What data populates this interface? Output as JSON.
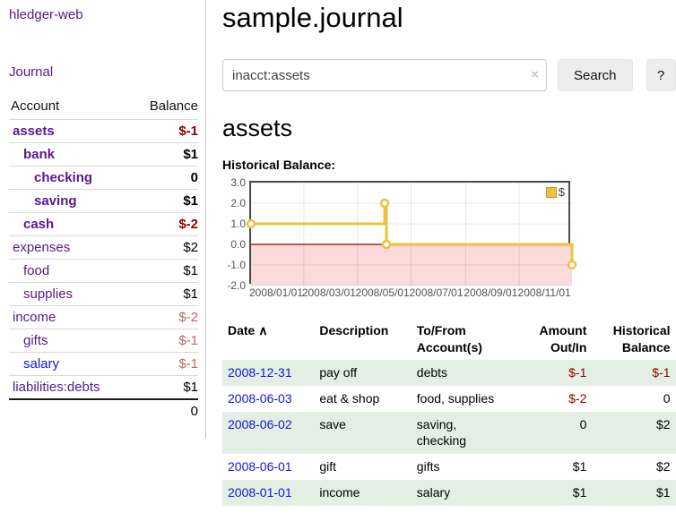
{
  "colors": {
    "brand_purple": "#551a8b",
    "link_blue": "#1414dd",
    "neg_strong": "#8b0000",
    "neg_muted": "#b56a6a",
    "row_green": "#e3efe3",
    "chart_line": "#edc240",
    "chart_neg_fill": "#fbdada",
    "chart_zero": "#8b0000",
    "axis_text": "#545454",
    "button_bg": "#ededed",
    "divider": "#cccccc"
  },
  "app": {
    "title": "hledger-web",
    "nav_journal": "Journal"
  },
  "sidebar": {
    "accounts_header": {
      "account": "Account",
      "balance": "Balance"
    },
    "accounts": [
      {
        "name": "assets",
        "indent": 1,
        "balance": "$-1",
        "bold": true,
        "neg": "strong"
      },
      {
        "name": "bank",
        "indent": 2,
        "balance": "$1",
        "bold": true
      },
      {
        "name": "checking",
        "indent": 3,
        "balance": "0",
        "bold": true
      },
      {
        "name": "saving",
        "indent": 3,
        "balance": "$1",
        "bold": true
      },
      {
        "name": "cash",
        "indent": 2,
        "balance": "$-2",
        "bold": true,
        "neg": "strong"
      },
      {
        "name": "expenses",
        "indent": 1,
        "balance": "$2"
      },
      {
        "name": "food",
        "indent": 2,
        "balance": "$1"
      },
      {
        "name": "supplies",
        "indent": 2,
        "balance": "$1"
      },
      {
        "name": "income",
        "indent": 1,
        "balance": "$-2",
        "neg": "muted"
      },
      {
        "name": "gifts",
        "indent": 2,
        "balance": "$-1",
        "neg": "muted"
      },
      {
        "name": "salary",
        "indent": 2,
        "balance": "$-1",
        "neg": "muted",
        "link": "blue"
      },
      {
        "name": "liabilities:debts",
        "indent": 1,
        "balance": "$1"
      }
    ],
    "total": "0"
  },
  "header": {
    "title": "sample.journal"
  },
  "search": {
    "value": "inacct:assets",
    "clear_icon": "×",
    "button": "Search",
    "help_button": "?"
  },
  "account_page": {
    "heading": "assets",
    "chart_label": "Historical Balance:"
  },
  "chart_data": {
    "type": "line",
    "step": true,
    "title": "Historical Balance:",
    "legend": "$",
    "legend_position": "top-right",
    "grid": true,
    "x_range": [
      "2008-01-01",
      "2008-12-31"
    ],
    "ylim": [
      -2,
      3
    ],
    "yticks": [
      {
        "v": 3,
        "label": "3.0"
      },
      {
        "v": 2,
        "label": "2.0"
      },
      {
        "v": 1,
        "label": "1.0"
      },
      {
        "v": 0,
        "label": "0.0"
      },
      {
        "v": -1,
        "label": "-1.0"
      },
      {
        "v": -2,
        "label": "-2.0"
      }
    ],
    "xticks": [
      {
        "date": "2008-01-01",
        "label": "2008/01/01"
      },
      {
        "date": "2008-03-01",
        "label": "2008/03/01"
      },
      {
        "date": "2008-05-01",
        "label": "2008/05/01"
      },
      {
        "date": "2008-07-01",
        "label": "2008/07/01"
      },
      {
        "date": "2008-09-01",
        "label": "2008/09/01"
      },
      {
        "date": "2008-11-01",
        "label": "2008/11/01"
      }
    ],
    "series": [
      {
        "name": "$",
        "points": [
          {
            "date": "2008-01-01",
            "value": 1
          },
          {
            "date": "2008-06-01",
            "value": 2
          },
          {
            "date": "2008-06-03",
            "value": 0
          },
          {
            "date": "2008-12-31",
            "value": -1
          }
        ]
      }
    ]
  },
  "register": {
    "sort_glyph": "∧",
    "columns": [
      {
        "label": "Date",
        "align": "left",
        "sorted": true
      },
      {
        "label": "Description",
        "align": "left"
      },
      {
        "label": "To/From Account(s)",
        "align": "left"
      },
      {
        "label": "Amount Out/In",
        "align": "right"
      },
      {
        "label": "Historical Balance",
        "align": "right"
      }
    ],
    "rows": [
      {
        "date": "2008-12-31",
        "description": "pay off",
        "accounts": "debts",
        "amount": "$-1",
        "balance": "$-1"
      },
      {
        "date": "2008-06-03",
        "description": "eat & shop",
        "accounts": "food, supplies",
        "amount": "$-2",
        "balance": "0"
      },
      {
        "date": "2008-06-02",
        "description": "save",
        "accounts": "saving, checking",
        "amount": "0",
        "balance": "$2"
      },
      {
        "date": "2008-06-01",
        "description": "gift",
        "accounts": "gifts",
        "amount": "$1",
        "balance": "$2"
      },
      {
        "date": "2008-01-01",
        "description": "income",
        "accounts": "salary",
        "amount": "$1",
        "balance": "$1"
      }
    ]
  }
}
